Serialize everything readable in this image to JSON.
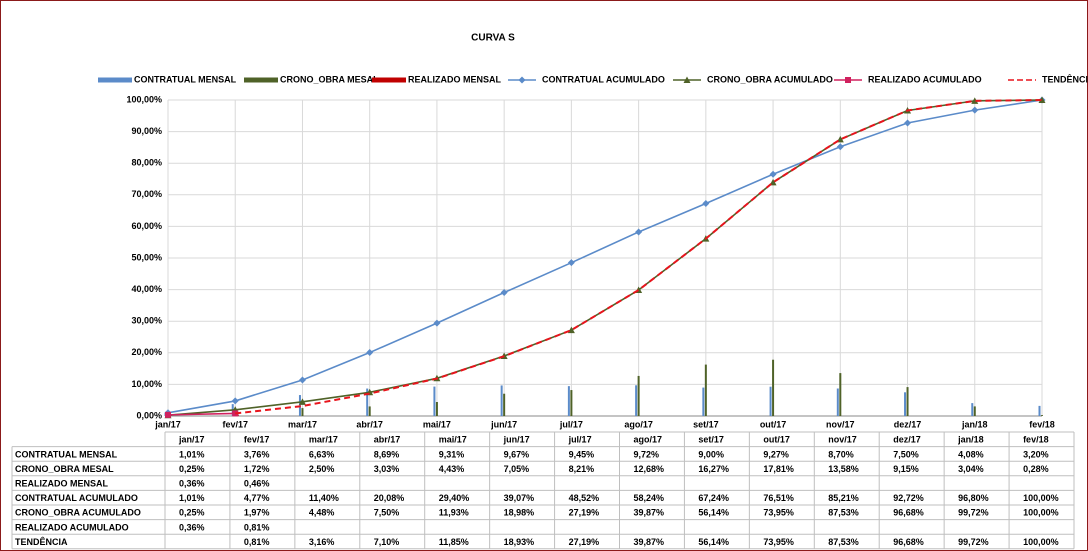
{
  "chart_data": {
    "type": "combo",
    "title": "CURVA S",
    "grid": true,
    "categories": [
      "jan/17",
      "fev/17",
      "mar/17",
      "abr/17",
      "mai/17",
      "jun/17",
      "jul/17",
      "ago/17",
      "set/17",
      "out/17",
      "nov/17",
      "dez/17",
      "jan/18",
      "fev/18"
    ],
    "ylim": [
      0,
      100
    ],
    "yticks": [
      {
        "value": 0,
        "label": "0,00%"
      },
      {
        "value": 10,
        "label": "10,00%"
      },
      {
        "value": 20,
        "label": "20,00%"
      },
      {
        "value": 30,
        "label": "30,00%"
      },
      {
        "value": 40,
        "label": "40,00%"
      },
      {
        "value": 50,
        "label": "50,00%"
      },
      {
        "value": 60,
        "label": "60,00%"
      },
      {
        "value": 70,
        "label": "70,00%"
      },
      {
        "value": 80,
        "label": "80,00%"
      },
      {
        "value": 90,
        "label": "90,00%"
      },
      {
        "value": 100,
        "label": "100,00%"
      }
    ],
    "series": [
      {
        "name": "CONTRATUAL MENSAL",
        "type": "bar",
        "color": "#5b8bc9",
        "values": [
          1.01,
          3.76,
          6.63,
          8.69,
          9.31,
          9.67,
          9.45,
          9.72,
          9.0,
          9.27,
          8.7,
          7.5,
          4.08,
          3.2
        ],
        "value_labels": [
          "1,01%",
          "3,76%",
          "6,63%",
          "8,69%",
          "9,31%",
          "9,67%",
          "9,45%",
          "9,72%",
          "9,00%",
          "9,27%",
          "8,70%",
          "7,50%",
          "4,08%",
          "3,20%"
        ]
      },
      {
        "name": "CRONO_OBRA MESAL",
        "type": "bar",
        "color": "#4f6228",
        "values": [
          0.25,
          1.72,
          2.5,
          3.03,
          4.43,
          7.05,
          8.21,
          12.68,
          16.27,
          17.81,
          13.58,
          9.15,
          3.04,
          0.28
        ],
        "value_labels": [
          "0,25%",
          "1,72%",
          "2,50%",
          "3,03%",
          "4,43%",
          "7,05%",
          "8,21%",
          "12,68%",
          "16,27%",
          "17,81%",
          "13,58%",
          "9,15%",
          "3,04%",
          "0,28%"
        ]
      },
      {
        "name": "REALIZADO MENSAL",
        "type": "bar",
        "color": "#c00000",
        "values": [
          0.36,
          0.46,
          null,
          null,
          null,
          null,
          null,
          null,
          null,
          null,
          null,
          null,
          null,
          null
        ],
        "value_labels": [
          "0,36%",
          "0,46%",
          null,
          null,
          null,
          null,
          null,
          null,
          null,
          null,
          null,
          null,
          null,
          null
        ]
      },
      {
        "name": "CONTRATUAL ACUMULADO",
        "type": "line",
        "marker": "diamond",
        "color": "#5b8bc9",
        "values": [
          1.01,
          4.77,
          11.4,
          20.08,
          29.4,
          39.07,
          48.52,
          58.24,
          67.24,
          76.51,
          85.21,
          92.72,
          96.8,
          100
        ],
        "value_labels": [
          "1,01%",
          "4,77%",
          "11,40%",
          "20,08%",
          "29,40%",
          "39,07%",
          "48,52%",
          "58,24%",
          "67,24%",
          "76,51%",
          "85,21%",
          "92,72%",
          "96,80%",
          "100,00%"
        ]
      },
      {
        "name": "CRONO_OBRA ACUMULADO",
        "type": "line",
        "marker": "triangle",
        "color": "#4f6228",
        "values": [
          0.25,
          1.97,
          4.48,
          7.5,
          11.93,
          18.98,
          27.19,
          39.87,
          56.14,
          73.95,
          87.53,
          96.68,
          99.72,
          100
        ],
        "value_labels": [
          "0,25%",
          "1,97%",
          "4,48%",
          "7,50%",
          "11,93%",
          "18,98%",
          "27,19%",
          "39,87%",
          "56,14%",
          "73,95%",
          "87,53%",
          "96,68%",
          "99,72%",
          "100,00%"
        ]
      },
      {
        "name": "REALIZADO ACUMULADO",
        "type": "line",
        "marker": "square",
        "color": "#d0215e",
        "values": [
          0.36,
          0.81,
          null,
          null,
          null,
          null,
          null,
          null,
          null,
          null,
          null,
          null,
          null,
          null
        ],
        "value_labels": [
          "0,36%",
          "0,81%",
          null,
          null,
          null,
          null,
          null,
          null,
          null,
          null,
          null,
          null,
          null,
          null
        ]
      },
      {
        "name": "TENDÊNCIA",
        "type": "line",
        "dash": true,
        "color": "#e8141c",
        "values": [
          null,
          0.81,
          3.16,
          7.1,
          11.85,
          18.93,
          27.19,
          39.87,
          56.14,
          73.95,
          87.53,
          96.68,
          99.72,
          100
        ],
        "value_labels": [
          null,
          "0,81%",
          "3,16%",
          "7,10%",
          "11,85%",
          "18,93%",
          "27,19%",
          "39,87%",
          "56,14%",
          "73,95%",
          "87,53%",
          "96,68%",
          "99,72%",
          "100,00%"
        ]
      }
    ]
  }
}
